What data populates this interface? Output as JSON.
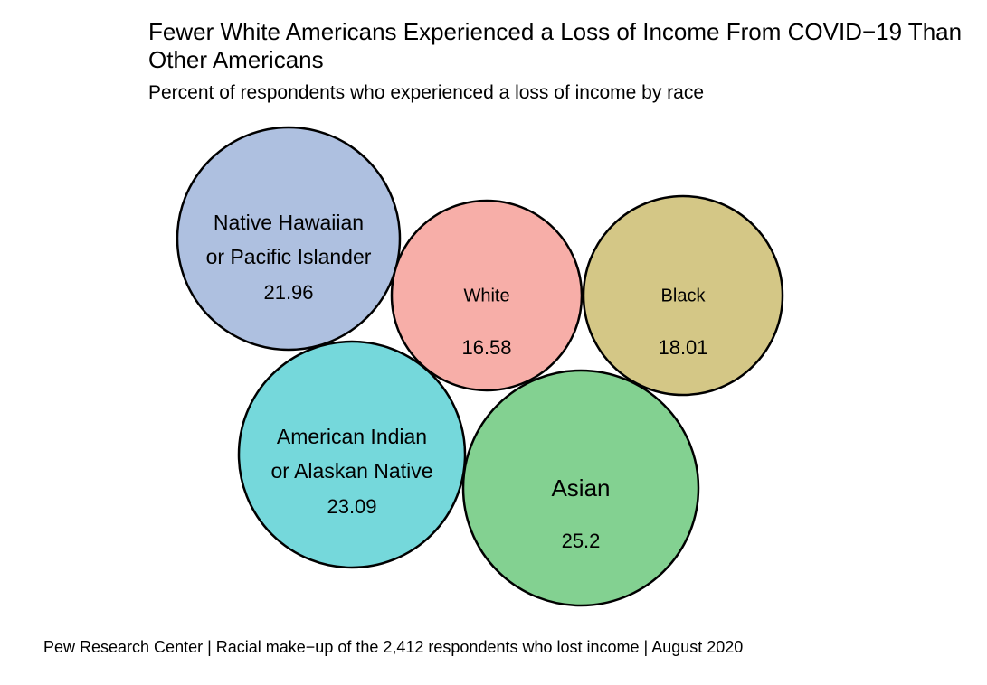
{
  "chart_data": {
    "type": "bubble",
    "title": "Fewer White Americans Experienced a Loss of Income From COVID−19 Than Other Americans",
    "subtitle": "Percent of respondents who experienced a loss of income by race",
    "caption": "Pew Research Center | Racial make−up of the 2,412 respondents who lost income | August 2020",
    "bubbles": [
      {
        "label_lines": [
          "Native Hawaiian",
          "or Pacific Islander"
        ],
        "value": 21.96,
        "value_label": "21.96",
        "color": "#aec0e0"
      },
      {
        "label_lines": [
          "White"
        ],
        "value": 16.58,
        "value_label": "16.58",
        "color": "#f7aea8"
      },
      {
        "label_lines": [
          "Black"
        ],
        "value": 18.01,
        "value_label": "18.01",
        "color": "#d4c786"
      },
      {
        "label_lines": [
          "American Indian",
          "or Alaskan Native"
        ],
        "value": 23.09,
        "value_label": "23.09",
        "color": "#75d8db"
      },
      {
        "label_lines": [
          "Asian"
        ],
        "value": 25.2,
        "value_label": "25.2",
        "color": "#83d191"
      }
    ]
  }
}
